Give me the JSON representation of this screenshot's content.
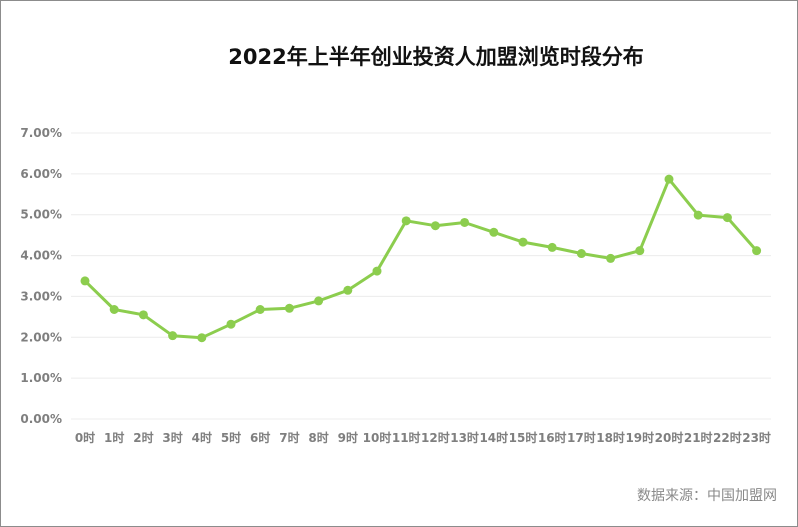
{
  "chart_data": {
    "type": "line",
    "title": "2022年上半年创业投资人加盟浏览时段分布",
    "categories": [
      "0时",
      "1时",
      "2时",
      "3时",
      "4时",
      "5时",
      "6时",
      "7时",
      "8时",
      "9时",
      "10时",
      "11时",
      "12时",
      "13时",
      "14时",
      "15时",
      "16时",
      "17时",
      "18时",
      "19时",
      "20时",
      "21时",
      "22时",
      "23时"
    ],
    "series": [
      {
        "values": [
          3.38,
          2.68,
          2.55,
          2.04,
          1.99,
          2.32,
          2.68,
          2.71,
          2.89,
          3.15,
          3.62,
          4.85,
          4.73,
          4.81,
          4.57,
          4.33,
          4.2,
          4.05,
          3.93,
          4.12,
          5.87,
          4.99,
          4.93,
          4.12
        ]
      }
    ],
    "yticks": [
      "0.00%",
      "1.00%",
      "2.00%",
      "3.00%",
      "4.00%",
      "5.00%",
      "6.00%",
      "7.00%"
    ],
    "ylim": [
      0,
      7
    ],
    "grid": true,
    "line_color": "#8ccd4e"
  },
  "source_note": "数据来源：中国加盟网"
}
